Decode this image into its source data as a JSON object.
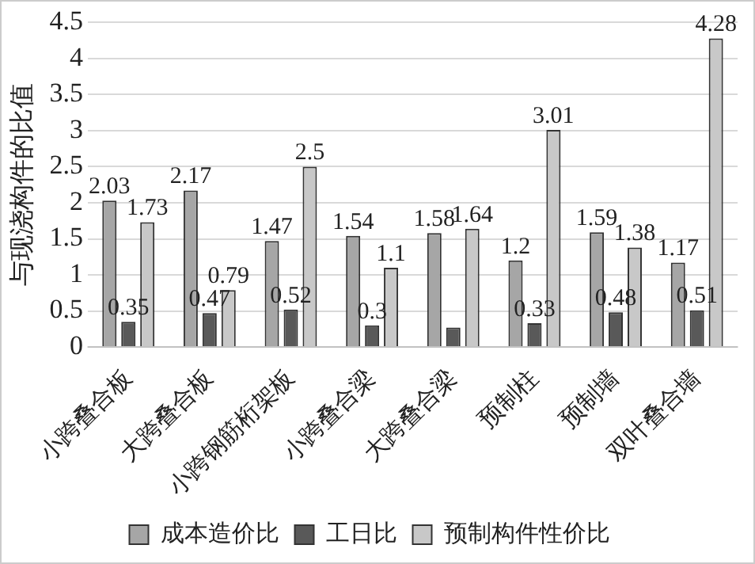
{
  "chart_data": {
    "type": "bar",
    "ylabel": "与现浇构件的比值",
    "categories": [
      "小跨叠合板",
      "大跨叠合板",
      "小跨钢筋桁架板",
      "小跨叠合梁",
      "大跨叠合梁",
      "预制柱",
      "预制墙",
      "双叶叠合墙"
    ],
    "series": [
      {
        "name": "成本造价比",
        "color": "#a6a6a6",
        "values": [
          2.03,
          2.17,
          1.47,
          1.54,
          1.58,
          1.2,
          1.59,
          1.17
        ],
        "value_labels": [
          "2.03",
          "2.17",
          "1.47",
          "1.54",
          "1.58",
          "1.2",
          "1.59",
          "1.17"
        ]
      },
      {
        "name": "工日比",
        "color": "#595959",
        "values": [
          0.35,
          0.47,
          0.52,
          0.3,
          0.27,
          0.33,
          0.48,
          0.51
        ],
        "value_labels": [
          "0.35",
          "0.47",
          "0.52",
          "0.3",
          null,
          "0.33",
          "0.48",
          "0.51"
        ]
      },
      {
        "name": "预制构件性价比",
        "color": "#c8c8c8",
        "values": [
          1.73,
          0.79,
          2.5,
          1.1,
          1.64,
          3.01,
          1.38,
          4.28
        ],
        "value_labels": [
          "1.73",
          "0.79",
          "2.5",
          "1.1",
          "1.64",
          "3.01",
          "1.38",
          "4.28"
        ]
      }
    ],
    "ylim": [
      0,
      4.5
    ],
    "yticks": [
      0,
      0.5,
      1,
      1.5,
      2,
      2.5,
      3,
      3.5,
      4,
      4.5
    ],
    "grid": "y",
    "legend": "bottom"
  }
}
